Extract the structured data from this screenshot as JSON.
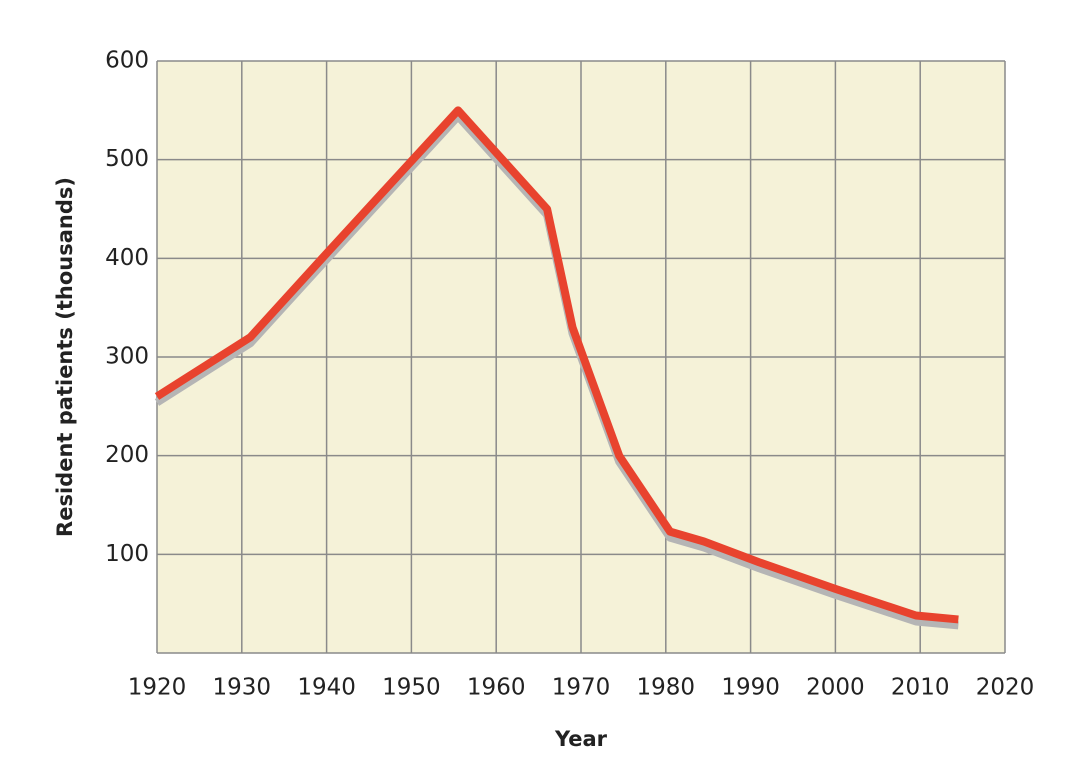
{
  "chart_data": {
    "type": "line",
    "x_label": "Year",
    "y_label": "Resident patients (thousands)",
    "x": [
      1920,
      1931,
      1940,
      1955.5,
      1966,
      1969,
      1974.5,
      1980.5,
      1984.5,
      1991,
      2000,
      2009.5,
      2014.5
    ],
    "series": [
      {
        "name": "Resident patients",
        "color": "#e8432e",
        "values": [
          260,
          320,
          405,
          550,
          450,
          330,
          200,
          123,
          113,
          92,
          65,
          38,
          34
        ]
      }
    ],
    "xlim": [
      1920,
      2020
    ],
    "xticks": [
      1920,
      1930,
      1940,
      1950,
      1960,
      1970,
      1980,
      1990,
      2000,
      2010,
      2020
    ],
    "ylim": [
      0,
      600
    ],
    "yticks": [
      100,
      200,
      300,
      400,
      500,
      600
    ],
    "grid": true,
    "background": "#f5f2d8",
    "shadow_color": "#b5b5b5"
  }
}
